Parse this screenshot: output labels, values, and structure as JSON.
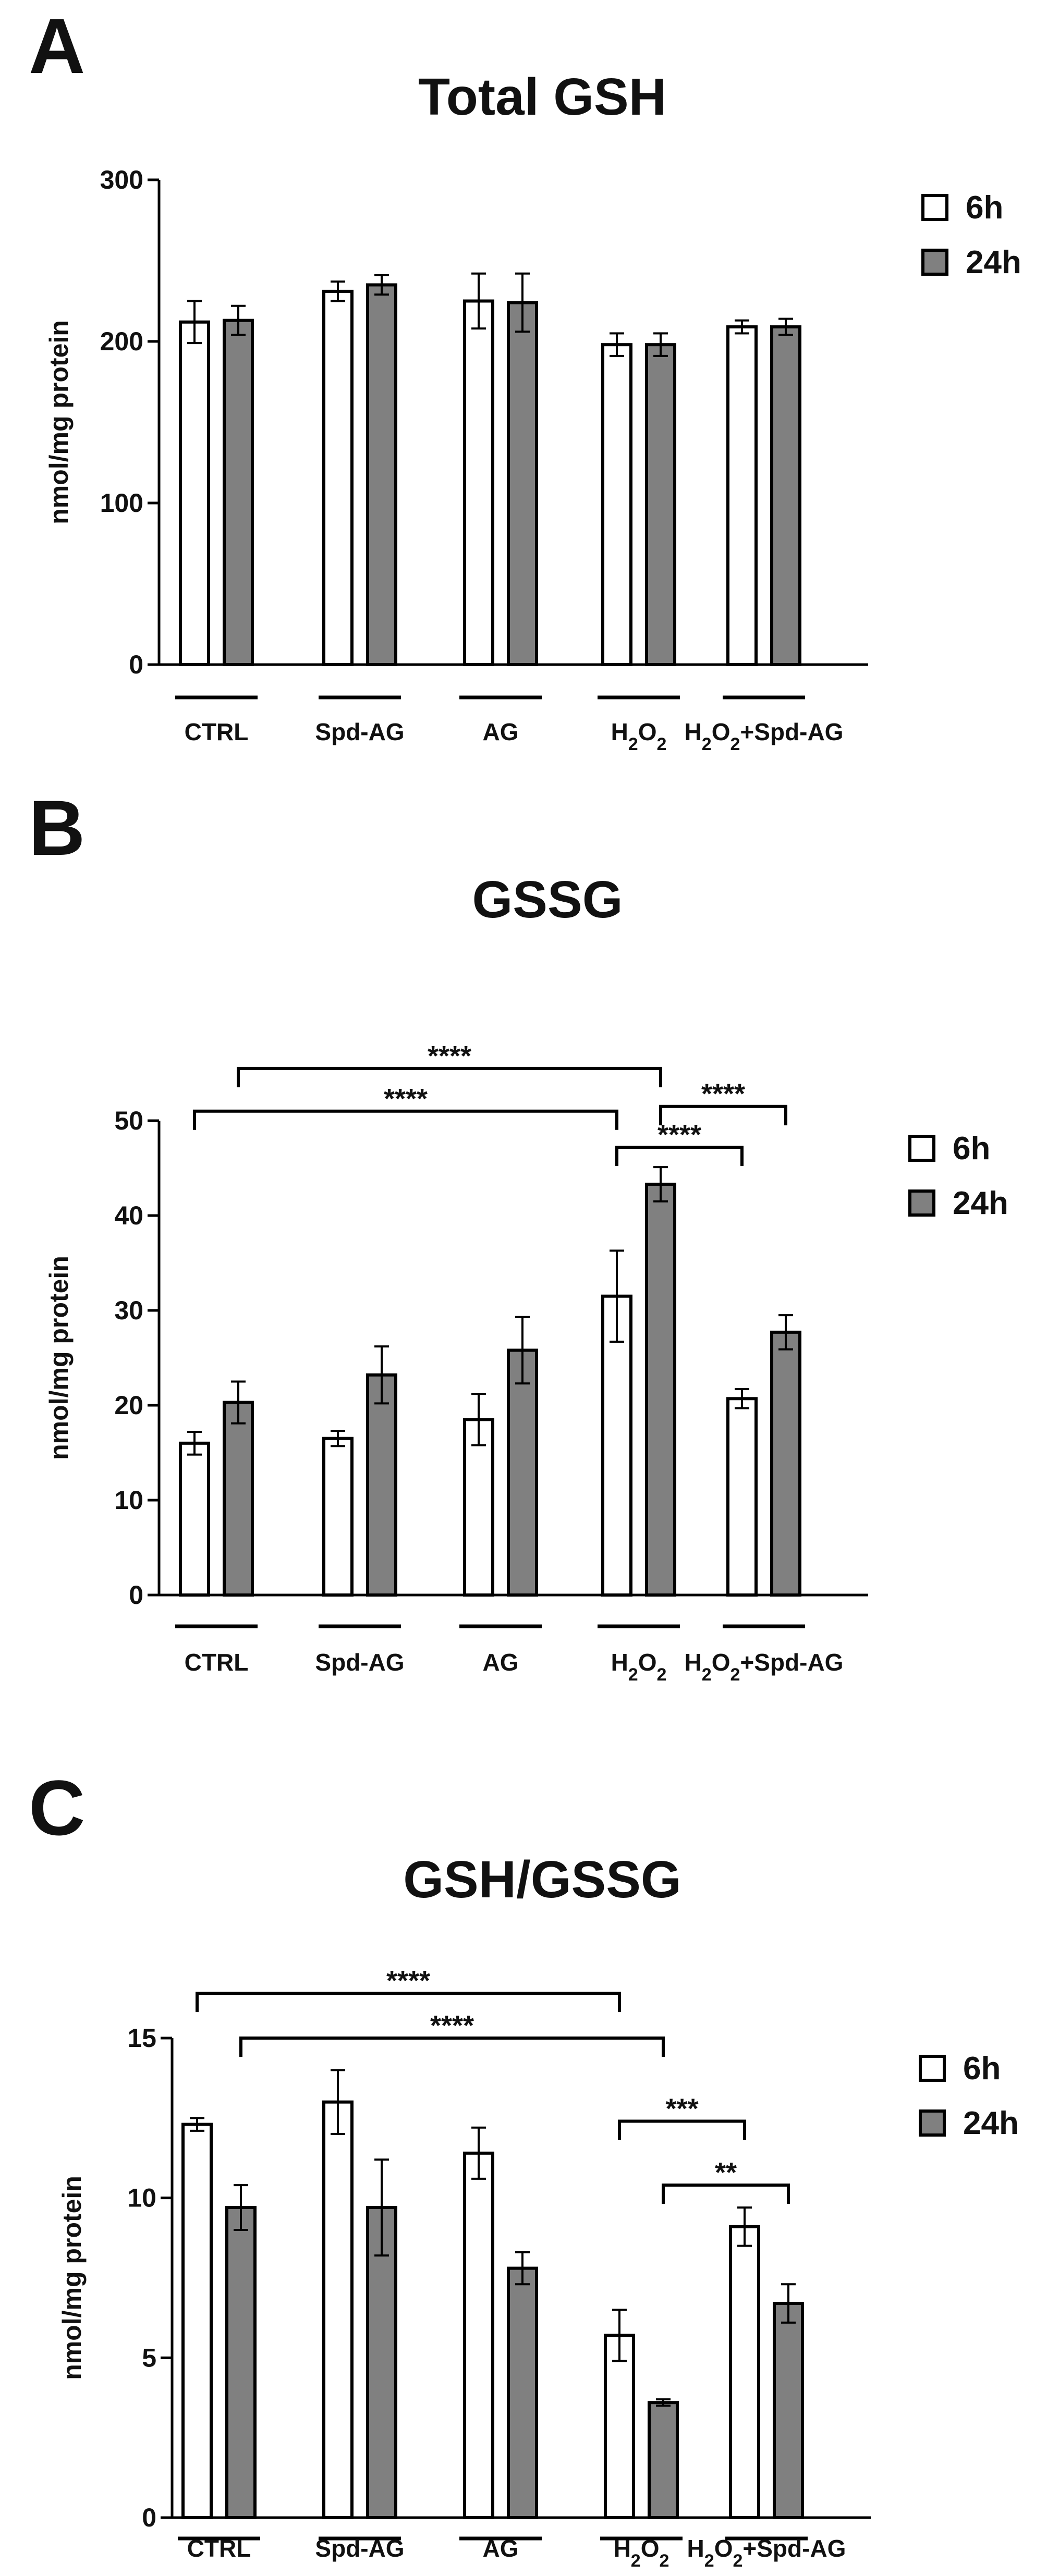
{
  "legend": [
    {
      "label": "6h",
      "color": "#ffffff"
    },
    {
      "label": "24h",
      "color": "#808080"
    }
  ],
  "chart_data": [
    {
      "type": "bar",
      "panel": "A",
      "title": "Total GSH",
      "ylabel": "nmol/mg protein",
      "ylim": [
        0,
        300
      ],
      "yticks": [
        0,
        100,
        200,
        300
      ],
      "categories": [
        "CTRL",
        "Spd-AG",
        "AG",
        "H2O2",
        "H2O2+Spd-AG"
      ],
      "series": [
        {
          "name": "6h",
          "values": [
            212,
            231,
            225,
            198,
            209
          ],
          "errors": [
            13,
            6,
            17,
            7,
            4
          ]
        },
        {
          "name": "24h",
          "values": [
            213,
            235,
            224,
            198,
            209
          ],
          "errors": [
            9,
            6,
            18,
            7,
            5
          ]
        }
      ],
      "significance": []
    },
    {
      "type": "bar",
      "panel": "B",
      "title": "GSSG",
      "ylabel": "nmol/mg protein",
      "ylim": [
        0,
        50
      ],
      "yticks": [
        0,
        10,
        20,
        30,
        40,
        50
      ],
      "categories": [
        "CTRL",
        "Spd-AG",
        "AG",
        "H2O2",
        "H2O2+Spd-AG"
      ],
      "series": [
        {
          "name": "6h",
          "values": [
            16,
            16.5,
            18.5,
            31.5,
            20.7
          ],
          "errors": [
            1.2,
            0.8,
            2.7,
            4.8,
            1.0
          ]
        },
        {
          "name": "24h",
          "values": [
            20.3,
            23.2,
            25.8,
            43.3,
            27.7
          ],
          "errors": [
            2.2,
            3.0,
            3.5,
            1.8,
            1.8
          ]
        }
      ],
      "significance": [
        {
          "from": [
            0,
            1
          ],
          "to": [
            3,
            1
          ],
          "y": 55.5,
          "label": "****"
        },
        {
          "from": [
            0,
            0
          ],
          "to": [
            3,
            0
          ],
          "y": 51,
          "label": "****"
        },
        {
          "from": [
            3,
            0
          ],
          "to": [
            4,
            0
          ],
          "y": 47.2,
          "label": "****"
        },
        {
          "from": [
            3,
            1
          ],
          "to": [
            4,
            1
          ],
          "y": 51.5,
          "label": "****"
        }
      ]
    },
    {
      "type": "bar",
      "panel": "C",
      "title": "GSH/GSSG",
      "ylabel": "nmol/mg protein",
      "ylim": [
        0,
        15
      ],
      "yticks": [
        0,
        5,
        10,
        15
      ],
      "categories": [
        "CTRL",
        "Spd-AG",
        "AG",
        "H2O2",
        "H2O2+Spd-AG"
      ],
      "series": [
        {
          "name": "6h",
          "values": [
            12.3,
            13.0,
            11.4,
            5.7,
            9.1
          ],
          "errors": [
            0.2,
            1.0,
            0.8,
            0.8,
            0.6
          ]
        },
        {
          "name": "24h",
          "values": [
            9.7,
            9.7,
            7.8,
            3.6,
            6.7
          ],
          "errors": [
            0.7,
            1.5,
            0.5,
            0.1,
            0.6
          ]
        }
      ],
      "significance": [
        {
          "from": [
            0,
            0
          ],
          "to": [
            3,
            0
          ],
          "y": 16.4,
          "label": "****"
        },
        {
          "from": [
            0,
            1
          ],
          "to": [
            3,
            1
          ],
          "y": 15.0,
          "label": "****"
        },
        {
          "from": [
            3,
            0
          ],
          "to": [
            4,
            0
          ],
          "y": 12.4,
          "label": "***"
        },
        {
          "from": [
            3,
            1
          ],
          "to": [
            4,
            1
          ],
          "y": 10.4,
          "label": "**"
        }
      ]
    }
  ]
}
